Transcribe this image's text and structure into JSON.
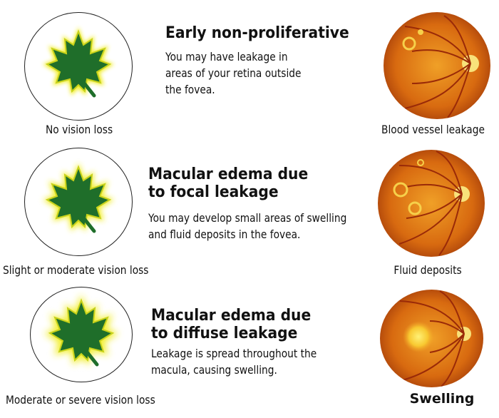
{
  "rows": [
    {
      "title_lines": [
        "Early non-proliferative"
      ],
      "desc_lines": [
        "You may have leakage in",
        "areas of your retina outside",
        "the fovea."
      ],
      "left_caption": "No vision loss",
      "right_caption": "Blood vessel leakage"
    },
    {
      "title_lines": [
        "Macular edema due",
        "to focal leakage"
      ],
      "desc_lines": [
        "You may develop small areas of swelling",
        "and fluid deposits in the fovea."
      ],
      "left_caption": "Slight or moderate vision loss",
      "right_caption": "Fluid deposits"
    },
    {
      "title_lines": [
        "Macular edema due",
        "to diffuse leakage"
      ],
      "desc_lines": [
        "Leakage is spread throughout the",
        "macula, causing swelling."
      ],
      "left_caption": "Moderate or severe vision loss",
      "right_caption": "Swelling"
    }
  ],
  "colors": {
    "leaf_green": "#1f6e2a",
    "leaf_glow": "#f2ee2c",
    "retina_orange": "#e07a12",
    "retina_dark": "#b2430a",
    "vessel": "#9a2a08"
  }
}
